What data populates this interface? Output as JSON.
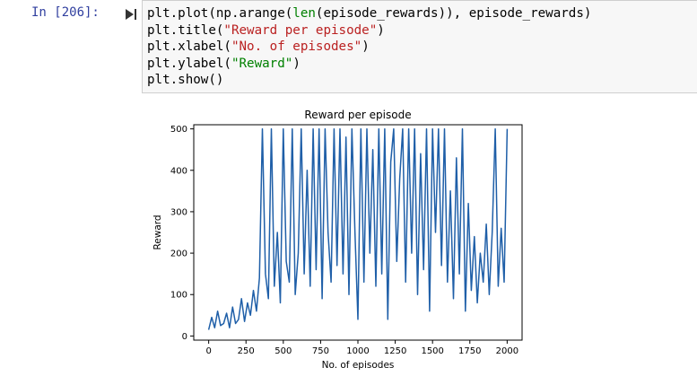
{
  "cell": {
    "prompt": "In [206]:",
    "run_icon": "run-cell-icon",
    "code_lines": [
      {
        "parts": [
          {
            "t": "plt.plot(np.arange(",
            "c": ""
          },
          {
            "t": "len",
            "c": "fn"
          },
          {
            "t": "(episode_rewards)), episode_rewards)",
            "c": ""
          }
        ]
      },
      {
        "parts": [
          {
            "t": "plt.title(",
            "c": ""
          },
          {
            "t": "\"Reward per episode\"",
            "c": "str"
          },
          {
            "t": ")",
            "c": ""
          }
        ]
      },
      {
        "parts": [
          {
            "t": "plt.xlabel(",
            "c": ""
          },
          {
            "t": "\"No. of episodes\"",
            "c": "str"
          },
          {
            "t": ")",
            "c": ""
          }
        ]
      },
      {
        "parts": [
          {
            "t": "plt.ylabel(",
            "c": ""
          },
          {
            "t": "\"Reward\"",
            "c": "str-g"
          },
          {
            "t": ")",
            "c": ""
          }
        ]
      },
      {
        "parts": [
          {
            "t": "plt.show()",
            "c": ""
          }
        ]
      }
    ]
  },
  "chart_data": {
    "type": "line",
    "title": "Reward per episode",
    "xlabel": "No. of episodes",
    "ylabel": "Reward",
    "xlim": [
      -100,
      2100
    ],
    "ylim": [
      -10,
      510
    ],
    "xticks": [
      0,
      250,
      500,
      750,
      1000,
      1250,
      1500,
      1750,
      2000
    ],
    "yticks": [
      0,
      100,
      200,
      300,
      400,
      500
    ],
    "grid": false,
    "color": "#1f5fa8",
    "series": [
      {
        "x": [
          0,
          20,
          40,
          60,
          80,
          100,
          120,
          140,
          160,
          180,
          200,
          220,
          240,
          260,
          280,
          300,
          320,
          340,
          360,
          380,
          400,
          420,
          440,
          460,
          480,
          500,
          520,
          540,
          560,
          580,
          600,
          620,
          640,
          660,
          680,
          700,
          720,
          740,
          760,
          780,
          800,
          820,
          840,
          860,
          880,
          900,
          920,
          940,
          960,
          980,
          1000,
          1020,
          1040,
          1060,
          1080,
          1100,
          1120,
          1140,
          1160,
          1180,
          1200,
          1220,
          1240,
          1260,
          1280,
          1300,
          1320,
          1340,
          1360,
          1380,
          1400,
          1420,
          1440,
          1460,
          1480,
          1500,
          1520,
          1540,
          1560,
          1580,
          1600,
          1620,
          1640,
          1660,
          1680,
          1700,
          1720,
          1740,
          1760,
          1780,
          1800,
          1820,
          1840,
          1860,
          1880,
          1900,
          1920,
          1940,
          1960,
          1980,
          2000
        ],
        "values": [
          15,
          45,
          20,
          60,
          25,
          30,
          55,
          20,
          70,
          30,
          40,
          90,
          35,
          80,
          50,
          110,
          60,
          140,
          500,
          150,
          90,
          500,
          120,
          250,
          80,
          500,
          180,
          130,
          500,
          100,
          200,
          500,
          150,
          400,
          120,
          500,
          160,
          500,
          90,
          500,
          250,
          130,
          500,
          170,
          500,
          150,
          480,
          100,
          500,
          250,
          40,
          500,
          130,
          500,
          200,
          450,
          120,
          500,
          150,
          500,
          40,
          420,
          500,
          180,
          380,
          500,
          130,
          500,
          200,
          500,
          100,
          440,
          160,
          500,
          60,
          500,
          250,
          500,
          170,
          500,
          130,
          350,
          90,
          430,
          150,
          500,
          60,
          320,
          110,
          240,
          80,
          200,
          130,
          270,
          100,
          250,
          500,
          120,
          260,
          130,
          500
        ]
      }
    ]
  }
}
